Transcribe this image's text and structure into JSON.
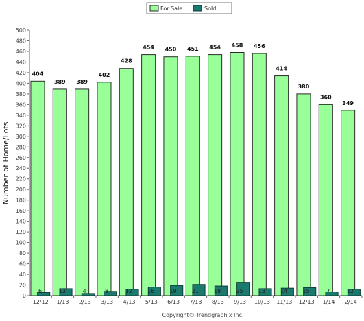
{
  "chart_data": {
    "type": "bar",
    "title": "",
    "xlabel": "",
    "ylabel": "Number of Home/Lots",
    "ylim": [
      0,
      500
    ],
    "ytick_step": 20,
    "grid": false,
    "legend_position": "top-center",
    "categories": [
      "12/12",
      "1/13",
      "2/13",
      "3/13",
      "4/13",
      "5/13",
      "6/13",
      "7/13",
      "8/13",
      "9/13",
      "10/13",
      "11/13",
      "12/13",
      "1/14",
      "2/14"
    ],
    "series": [
      {
        "name": "For Sale",
        "color": "#99ff99",
        "values": [
          404,
          389,
          389,
          402,
          428,
          454,
          450,
          451,
          454,
          458,
          456,
          414,
          380,
          360,
          349
        ]
      },
      {
        "name": "Sold",
        "color": "#1a7a6e",
        "values": [
          6,
          13,
          4,
          8,
          12,
          16,
          19,
          21,
          18,
          25,
          13,
          14,
          15,
          7,
          12
        ]
      }
    ]
  },
  "footer": "Copyright© Trendgraphix Inc."
}
